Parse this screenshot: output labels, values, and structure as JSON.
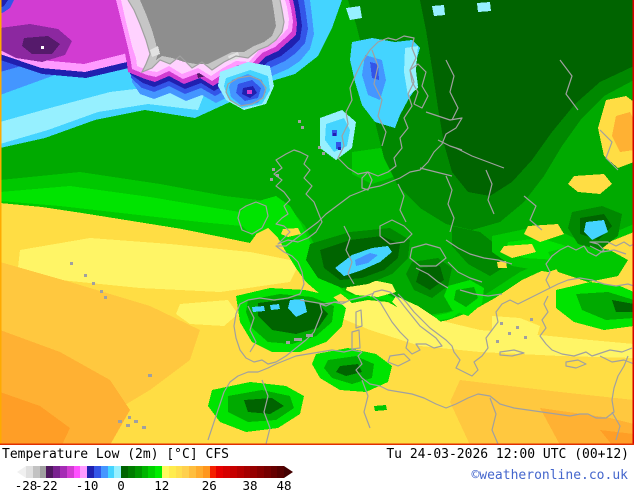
{
  "legend": {
    "title": "Temperature Low (2m) [°C] CFS",
    "datetime": "Tu 24-03-2026 12:00 UTC (00+12)",
    "credit": "©weatheronline.co.uk",
    "credit_color": "#4466cc",
    "text_color": "#000000",
    "scale": {
      "unit": "°C",
      "min": -28,
      "max": 48,
      "ticks": [
        -28,
        -22,
        -10,
        0,
        12,
        26,
        38,
        48
      ],
      "arrow_left": "#f0f0f0",
      "arrow_right": "#430000",
      "segments": [
        "#e0e0e0",
        "#c2c2c2",
        "#a0a0a0",
        "#50185f",
        "#7a2290",
        "#a52cb4",
        "#d23cd2",
        "#ff50ff",
        "#ff9aff",
        "#2020b0",
        "#3355e8",
        "#4496ff",
        "#44d4ff",
        "#96f0ff",
        "#006400",
        "#007d00",
        "#009600",
        "#00b400",
        "#00d200",
        "#00ee00",
        "#fff95d",
        "#ffec4d",
        "#ffdf4d",
        "#ffd04d",
        "#ffbe3d",
        "#ffab2d",
        "#ff961d",
        "#f52000",
        "#e60000",
        "#d60000",
        "#c60000",
        "#b60000",
        "#a60000",
        "#960000",
        "#860000",
        "#760000",
        "#660000",
        "#560000"
      ]
    }
  },
  "map": {
    "palette": {
      "gold": "#ffdd44",
      "yellowPale": "#fff566",
      "amber": "#ffc83f",
      "orange1": "#ffb133",
      "orange2": "#ff9e26",
      "green1": "#006400",
      "green2": "#008800",
      "green3": "#00aa00",
      "green4": "#00c800",
      "green5": "#00e400",
      "paleCyan": "#96f0ff",
      "cyan": "#44d4ff",
      "blue": "#4496ff",
      "royal": "#3355e8",
      "navy": "#2020b0",
      "pink": "#ff9aff",
      "palePink": "#ffd2ff",
      "magenta": "#d23cd2",
      "purple": "#8c28a0",
      "purpleDark": "#551a6b",
      "white": "#ffffff",
      "glandGray": "#8e8e8e",
      "glandLight": "#c6c6c6",
      "glandPale": "#e2e2e2",
      "coast": "#a0a0a0",
      "frameLeft": "#ffaa00",
      "frameRight": "#d40000",
      "frameBottom": "#e03000"
    }
  }
}
